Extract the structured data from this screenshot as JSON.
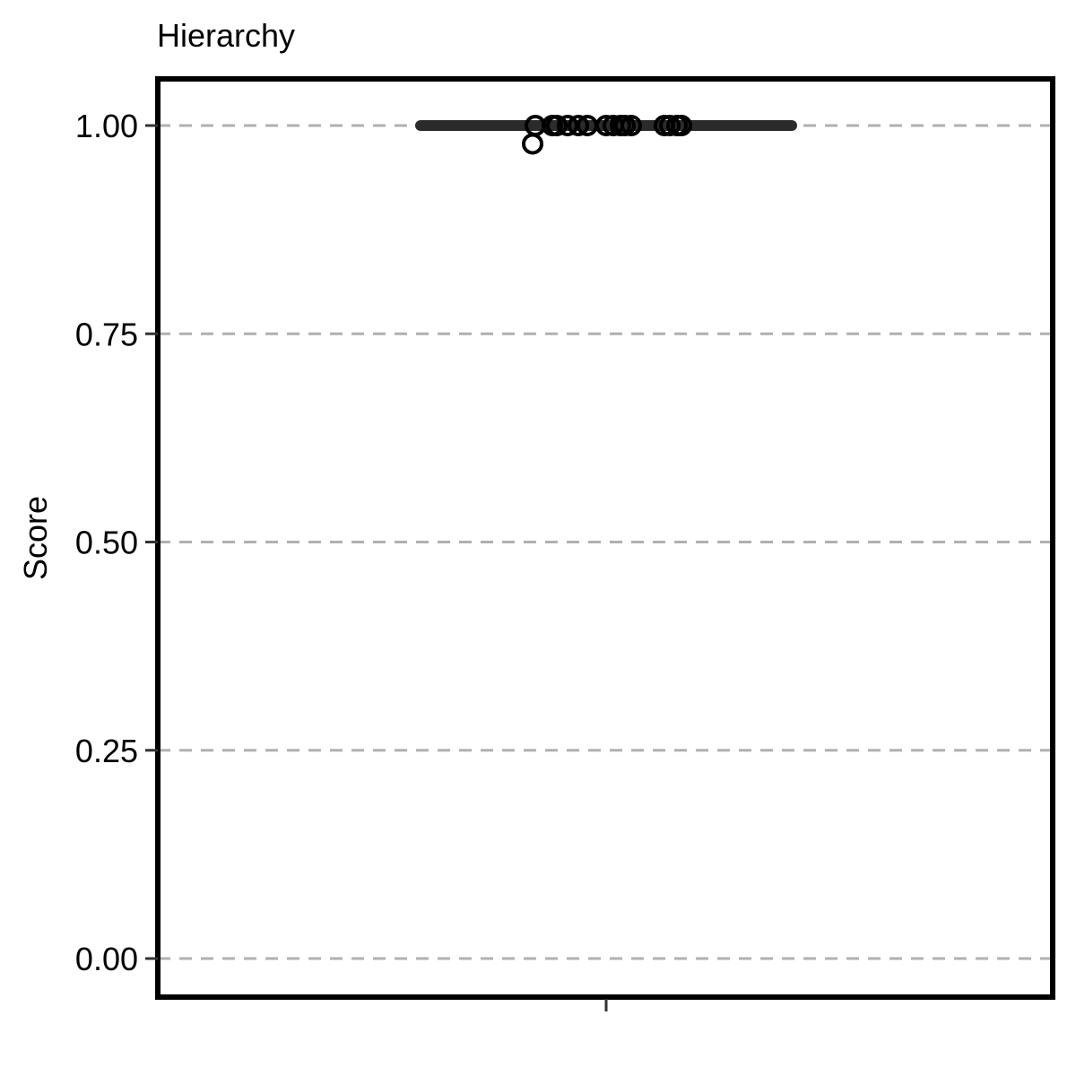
{
  "chart_data": {
    "type": "box",
    "title": "Hierarchy",
    "ylabel": "Score",
    "xlabel": "",
    "ylim": [
      -0.04,
      1.06
    ],
    "yticks": [
      1.0,
      0.75,
      0.5,
      0.25,
      0.0
    ],
    "ytick_labels": [
      "1.00",
      "0.75",
      "0.50",
      "0.25",
      "0.00"
    ],
    "grid": "dashed horizontal",
    "box": {
      "min": 1.0,
      "q1": 1.0,
      "median": 1.0,
      "q3": 1.0,
      "max": 1.0
    },
    "points": [
      0.978,
      1.0,
      1.0,
      1.0,
      1.0,
      1.0,
      1.0,
      1.0,
      1.0,
      1.0,
      1.0,
      1.0,
      1.0,
      1.0,
      1.0,
      1.0
    ],
    "colors": {
      "box": "#2b2b2b",
      "grid": "#b0b0b0",
      "frame": "#000000",
      "point_stroke": "#000000"
    }
  }
}
